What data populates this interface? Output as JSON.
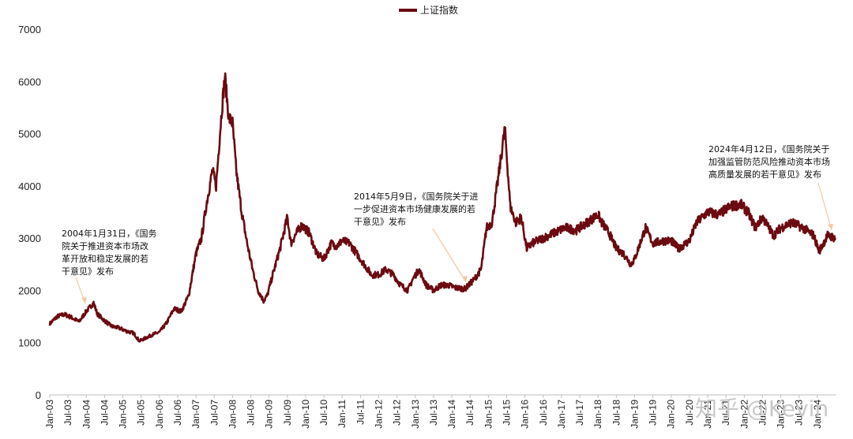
{
  "chart_data": {
    "type": "line",
    "title": "",
    "xlabel": "",
    "ylabel": "",
    "ylim": [
      0,
      7000
    ],
    "yticks": [
      0,
      1000,
      2000,
      3000,
      4000,
      5000,
      6000,
      7000
    ],
    "legend": {
      "position": "top-center",
      "entries": [
        "上证指数"
      ]
    },
    "grid": false,
    "xticks": [
      "Jan-03",
      "Jul-03",
      "Jan-04",
      "Jul-04",
      "Jan-05",
      "Jul-05",
      "Jan-06",
      "Jul-06",
      "Jan-07",
      "Jul-07",
      "Jan-08",
      "Jul-08",
      "Jan-09",
      "Jul-09",
      "Jan-10",
      "Jul-10",
      "Jan-11",
      "Jul-11",
      "Jan-12",
      "Jul-12",
      "Jan-13",
      "Jul-13",
      "Jan-14",
      "Jul-14",
      "Jan-15",
      "Jul-15",
      "Jan-16",
      "Jul-16",
      "Jan-17",
      "Jul-17",
      "Jan-18",
      "Jul-18",
      "Jan-19",
      "Jul-19",
      "Jan-20",
      "Jul-20",
      "Jan-21",
      "Jul-21",
      "Jan-22",
      "Jul-22",
      "Jan-23",
      "Jul-23",
      "Jan-24"
    ],
    "series": [
      {
        "name": "上证指数",
        "color": "#6b0a10",
        "x": [
          2003.0,
          2003.2,
          2003.4,
          2003.6,
          2003.8,
          2004.0,
          2004.2,
          2004.3,
          2004.5,
          2004.7,
          2004.9,
          2005.1,
          2005.3,
          2005.45,
          2005.6,
          2005.8,
          2006.0,
          2006.2,
          2006.4,
          2006.6,
          2006.8,
          2007.0,
          2007.15,
          2007.3,
          2007.45,
          2007.55,
          2007.7,
          2007.79,
          2007.9,
          2008.0,
          2008.1,
          2008.25,
          2008.4,
          2008.55,
          2008.7,
          2008.85,
          2008.95,
          2009.1,
          2009.3,
          2009.5,
          2009.6,
          2009.75,
          2009.9,
          2010.1,
          2010.3,
          2010.5,
          2010.7,
          2010.85,
          2011.0,
          2011.2,
          2011.4,
          2011.6,
          2011.8,
          2012.0,
          2012.2,
          2012.4,
          2012.6,
          2012.8,
          2012.92,
          2013.1,
          2013.3,
          2013.5,
          2013.7,
          2013.9,
          2014.1,
          2014.36,
          2014.6,
          2014.8,
          2014.95,
          2015.1,
          2015.3,
          2015.45,
          2015.6,
          2015.75,
          2015.9,
          2016.05,
          2016.2,
          2016.5,
          2016.8,
          2017.1,
          2017.4,
          2017.7,
          2018.0,
          2018.1,
          2018.3,
          2018.5,
          2018.7,
          2018.9,
          2019.0,
          2019.3,
          2019.5,
          2019.8,
          2020.0,
          2020.2,
          2020.5,
          2020.7,
          2021.0,
          2021.3,
          2021.6,
          2021.9,
          2022.1,
          2022.3,
          2022.5,
          2022.8,
          2023.0,
          2023.3,
          2023.6,
          2023.9,
          2024.05,
          2024.28,
          2024.5
        ],
        "values": [
          1360,
          1500,
          1540,
          1480,
          1400,
          1600,
          1760,
          1550,
          1420,
          1310,
          1280,
          1220,
          1180,
          1030,
          1080,
          1150,
          1200,
          1380,
          1650,
          1600,
          1900,
          2700,
          3000,
          3700,
          4300,
          4000,
          5400,
          6100,
          5300,
          5200,
          4300,
          3500,
          2900,
          2400,
          2000,
          1800,
          1900,
          2300,
          2800,
          3400,
          2900,
          3100,
          3250,
          3100,
          2700,
          2600,
          2900,
          2850,
          2950,
          2900,
          2700,
          2500,
          2300,
          2300,
          2400,
          2300,
          2100,
          2000,
          2200,
          2400,
          2100,
          2000,
          2100,
          2100,
          2050,
          2030,
          2200,
          2400,
          3200,
          3300,
          4300,
          5100,
          3600,
          3300,
          3400,
          2800,
          2900,
          3000,
          3100,
          3200,
          3150,
          3300,
          3450,
          3300,
          3100,
          2800,
          2700,
          2500,
          2600,
          3200,
          2900,
          2950,
          2950,
          2800,
          2950,
          3300,
          3500,
          3450,
          3600,
          3650,
          3500,
          3200,
          3400,
          3050,
          3200,
          3300,
          3200,
          3050,
          2750,
          3050,
          3000
        ]
      }
    ],
    "annotations": [
      {
        "text_lines": [
          "2004年1月31日，《国务",
          "院关于推进资本市场改",
          "革开放和稳定发展的若",
          "干意见》发布"
        ],
        "x": 2004.08,
        "y": 1600
      },
      {
        "text_lines": [
          "2014年5月9日，《国务院关于进",
          "一步促进资本市场健康发展的若",
          "干意见》发布"
        ],
        "x": 2014.36,
        "y": 2030
      },
      {
        "text_lines": [
          "2024年4月12日，《国务院关于",
          "加强监管防范风险推动资本市场",
          "高质量发展的若干意见》发布"
        ],
        "x": 2024.28,
        "y": 3050
      }
    ]
  },
  "watermark": "知乎 @Kevin"
}
